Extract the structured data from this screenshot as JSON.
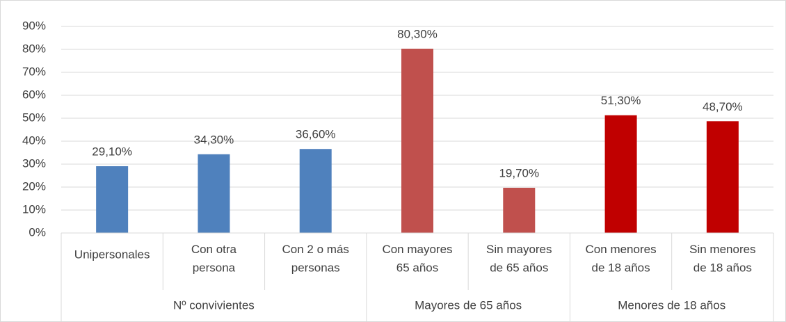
{
  "chart_data": {
    "type": "bar",
    "categories": [
      "Unipersonales",
      "Con otra\npersona",
      "Con 2 o más\npersonas",
      "Con mayores\n65 años",
      "Sin mayores\nde 65 años",
      "Con menores\nde 18 años",
      "Sin menores\nde 18 años"
    ],
    "groups": [
      {
        "name": "Nº convivientes",
        "size": 3
      },
      {
        "name": "Mayores de 65 años",
        "size": 2
      },
      {
        "name": "Menores de 18 años",
        "size": 2
      }
    ],
    "values": [
      29.1,
      34.3,
      36.6,
      80.3,
      19.7,
      51.3,
      48.7
    ],
    "value_labels": [
      "29,10%",
      "34,30%",
      "36,60%",
      "80,30%",
      "19,70%",
      "51,30%",
      "48,70%"
    ],
    "colors": [
      "#4f81bd",
      "#4f81bd",
      "#4f81bd",
      "#c0504d",
      "#c0504d",
      "#c00000",
      "#c00000"
    ],
    "ylim": [
      0,
      90
    ],
    "yticks": [
      {
        "value": 0,
        "label": "0%"
      },
      {
        "value": 10,
        "label": "10%"
      },
      {
        "value": 20,
        "label": "20%"
      },
      {
        "value": 30,
        "label": "30%"
      },
      {
        "value": 40,
        "label": "40%"
      },
      {
        "value": 50,
        "label": "50%"
      },
      {
        "value": 60,
        "label": "60%"
      },
      {
        "value": 70,
        "label": "70%"
      },
      {
        "value": 80,
        "label": "80%"
      },
      {
        "value": 90,
        "label": "90%"
      }
    ],
    "grid": true
  }
}
